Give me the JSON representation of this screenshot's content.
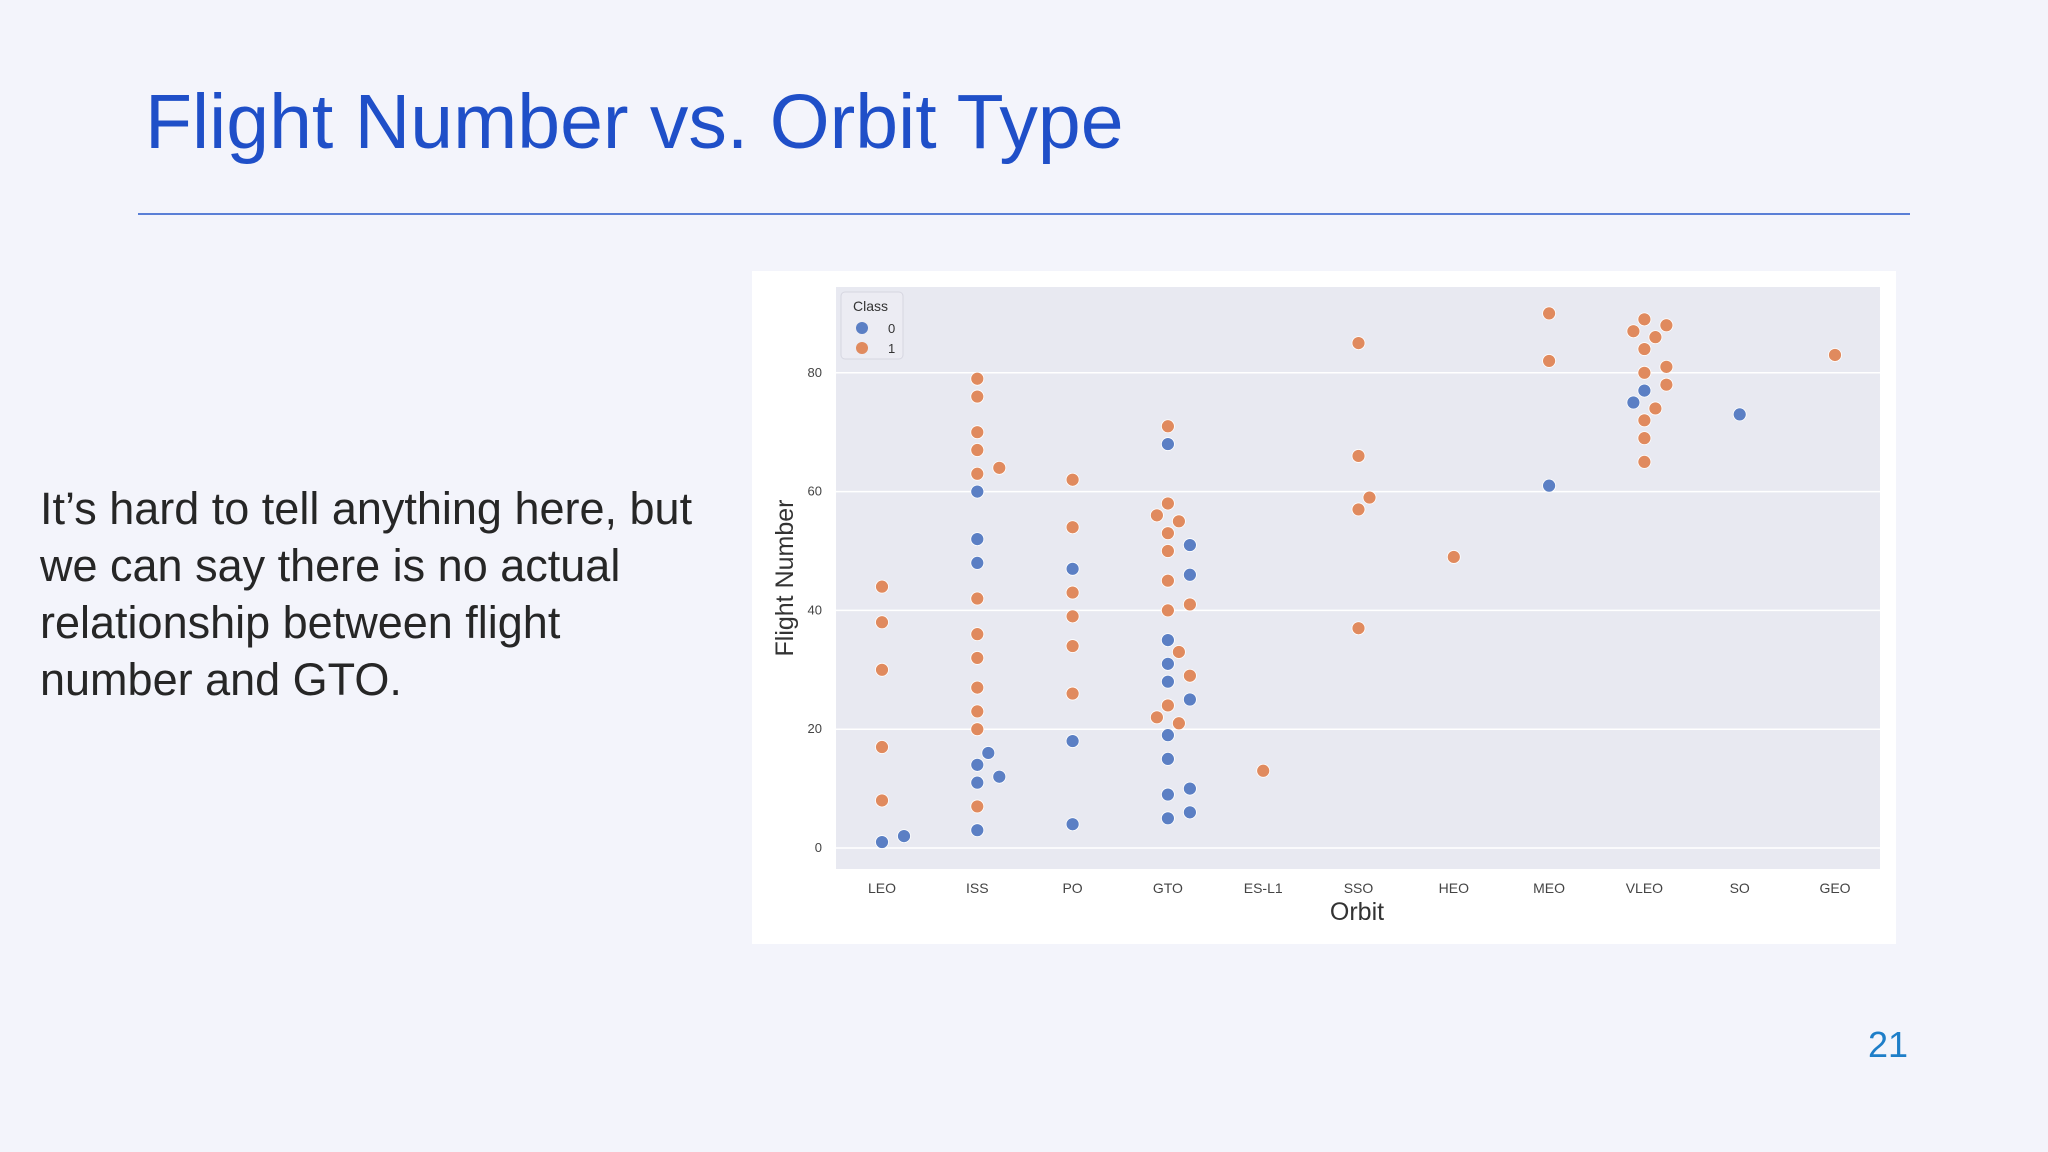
{
  "slide": {
    "title": "Flight Number vs. Orbit Type",
    "body": "It’s hard to tell anything here, but we can say there is no actual relationship between flight number and GTO.",
    "page_number": "21"
  },
  "colors": {
    "class_0": "#5b7fc4",
    "class_1": "#e08a5e",
    "plot_bg": "#e8e9f1",
    "grid": "#ffffff"
  },
  "chart_data": {
    "type": "scatter",
    "title": "",
    "xlabel": "Orbit",
    "ylabel": "Flight Number",
    "categories": [
      "LEO",
      "ISS",
      "PO",
      "GTO",
      "ES-L1",
      "SSO",
      "HEO",
      "MEO",
      "VLEO",
      "SO",
      "GEO"
    ],
    "yticks": [
      0,
      20,
      40,
      60,
      80
    ],
    "ylim": [
      -3,
      95
    ],
    "grid": true,
    "legend": {
      "title": "Class",
      "placement": "top-left",
      "entries": [
        "0",
        "1"
      ]
    },
    "series": [
      {
        "name": "0",
        "points": [
          {
            "x": "LEO",
            "y": 2
          },
          {
            "x": "LEO",
            "y": 1
          },
          {
            "x": "ISS",
            "y": 60
          },
          {
            "x": "ISS",
            "y": 52
          },
          {
            "x": "ISS",
            "y": 48
          },
          {
            "x": "ISS",
            "y": 16
          },
          {
            "x": "ISS",
            "y": 14
          },
          {
            "x": "ISS",
            "y": 12
          },
          {
            "x": "ISS",
            "y": 11
          },
          {
            "x": "ISS",
            "y": 3
          },
          {
            "x": "PO",
            "y": 47
          },
          {
            "x": "PO",
            "y": 18
          },
          {
            "x": "PO",
            "y": 4
          },
          {
            "x": "GTO",
            "y": 68
          },
          {
            "x": "GTO",
            "y": 51
          },
          {
            "x": "GTO",
            "y": 46
          },
          {
            "x": "GTO",
            "y": 35
          },
          {
            "x": "GTO",
            "y": 31
          },
          {
            "x": "GTO",
            "y": 28
          },
          {
            "x": "GTO",
            "y": 25
          },
          {
            "x": "GTO",
            "y": 19
          },
          {
            "x": "GTO",
            "y": 15
          },
          {
            "x": "GTO",
            "y": 10
          },
          {
            "x": "GTO",
            "y": 9
          },
          {
            "x": "GTO",
            "y": 6
          },
          {
            "x": "GTO",
            "y": 5
          },
          {
            "x": "MEO",
            "y": 61
          },
          {
            "x": "VLEO",
            "y": 77
          },
          {
            "x": "VLEO",
            "y": 75
          },
          {
            "x": "SO",
            "y": 73
          }
        ]
      },
      {
        "name": "1",
        "points": [
          {
            "x": "LEO",
            "y": 44
          },
          {
            "x": "LEO",
            "y": 38
          },
          {
            "x": "LEO",
            "y": 30
          },
          {
            "x": "LEO",
            "y": 17
          },
          {
            "x": "LEO",
            "y": 8
          },
          {
            "x": "ISS",
            "y": 79
          },
          {
            "x": "ISS",
            "y": 76
          },
          {
            "x": "ISS",
            "y": 70
          },
          {
            "x": "ISS",
            "y": 67
          },
          {
            "x": "ISS",
            "y": 64
          },
          {
            "x": "ISS",
            "y": 63
          },
          {
            "x": "ISS",
            "y": 42
          },
          {
            "x": "ISS",
            "y": 36
          },
          {
            "x": "ISS",
            "y": 32
          },
          {
            "x": "ISS",
            "y": 27
          },
          {
            "x": "ISS",
            "y": 23
          },
          {
            "x": "ISS",
            "y": 20
          },
          {
            "x": "ISS",
            "y": 7
          },
          {
            "x": "PO",
            "y": 62
          },
          {
            "x": "PO",
            "y": 54
          },
          {
            "x": "PO",
            "y": 43
          },
          {
            "x": "PO",
            "y": 39
          },
          {
            "x": "PO",
            "y": 34
          },
          {
            "x": "PO",
            "y": 26
          },
          {
            "x": "GTO",
            "y": 71
          },
          {
            "x": "GTO",
            "y": 58
          },
          {
            "x": "GTO",
            "y": 56
          },
          {
            "x": "GTO",
            "y": 55
          },
          {
            "x": "GTO",
            "y": 53
          },
          {
            "x": "GTO",
            "y": 50
          },
          {
            "x": "GTO",
            "y": 45
          },
          {
            "x": "GTO",
            "y": 41
          },
          {
            "x": "GTO",
            "y": 40
          },
          {
            "x": "GTO",
            "y": 33
          },
          {
            "x": "GTO",
            "y": 29
          },
          {
            "x": "GTO",
            "y": 24
          },
          {
            "x": "GTO",
            "y": 22
          },
          {
            "x": "GTO",
            "y": 21
          },
          {
            "x": "ES-L1",
            "y": 13
          },
          {
            "x": "SSO",
            "y": 85
          },
          {
            "x": "SSO",
            "y": 66
          },
          {
            "x": "SSO",
            "y": 59
          },
          {
            "x": "SSO",
            "y": 57
          },
          {
            "x": "SSO",
            "y": 37
          },
          {
            "x": "HEO",
            "y": 49
          },
          {
            "x": "MEO",
            "y": 90
          },
          {
            "x": "MEO",
            "y": 82
          },
          {
            "x": "VLEO",
            "y": 89
          },
          {
            "x": "VLEO",
            "y": 88
          },
          {
            "x": "VLEO",
            "y": 87
          },
          {
            "x": "VLEO",
            "y": 86
          },
          {
            "x": "VLEO",
            "y": 84
          },
          {
            "x": "VLEO",
            "y": 81
          },
          {
            "x": "VLEO",
            "y": 80
          },
          {
            "x": "VLEO",
            "y": 78
          },
          {
            "x": "VLEO",
            "y": 74
          },
          {
            "x": "VLEO",
            "y": 72
          },
          {
            "x": "VLEO",
            "y": 69
          },
          {
            "x": "VLEO",
            "y": 65
          },
          {
            "x": "GEO",
            "y": 83
          }
        ]
      }
    ]
  }
}
